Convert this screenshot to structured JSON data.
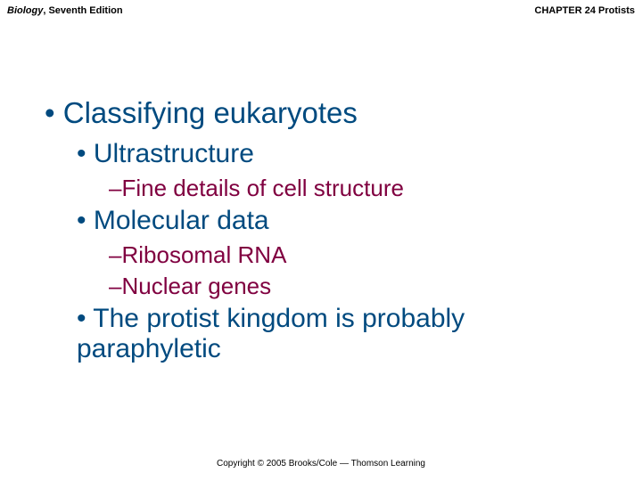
{
  "header": {
    "book_title": "Biology",
    "edition": ", Seventh Edition",
    "chapter": "CHAPTER 24 Protists"
  },
  "content": {
    "l1_a": "Classifying eukaryotes",
    "l2_a": "Ultrastructure",
    "l3_a": "Fine details of cell structure",
    "l2_b": "Molecular data",
    "l3_b": "Ribosomal RNA",
    "l3_c": "Nuclear genes",
    "l2_c": "The protist kingdom is probably paraphyletic"
  },
  "footer": {
    "copyright": "Copyright © 2005 Brooks/Cole — Thomson Learning"
  },
  "style": {
    "background_color": "#ffffff",
    "l1_color": "#004a7f",
    "l2_color": "#004a7f",
    "l3_color": "#800040",
    "l1_fontsize": 33,
    "l2_fontsize": 30,
    "l3_fontsize": 26,
    "header_fontsize": 11,
    "footer_fontsize": 10
  }
}
